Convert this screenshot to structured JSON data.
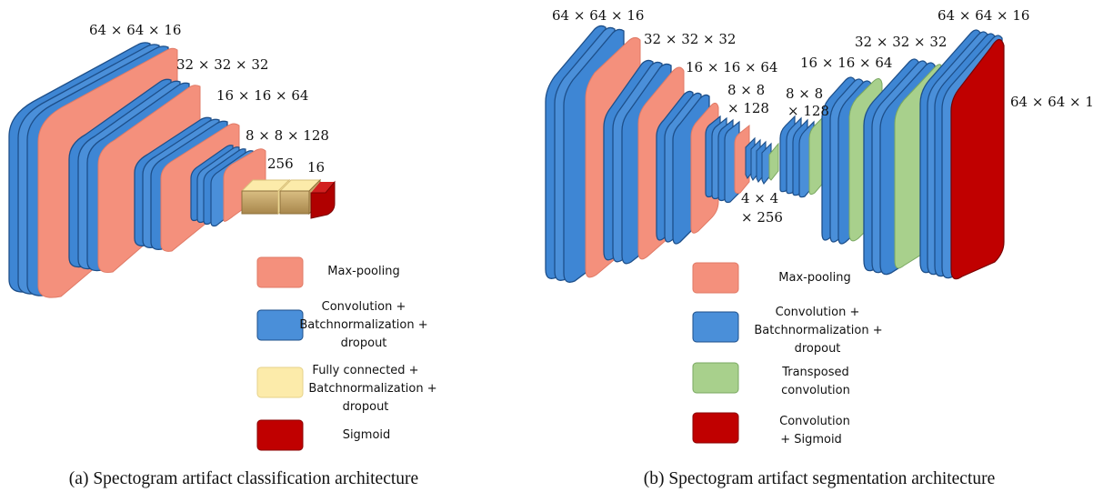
{
  "panel_a": {
    "labels": {
      "l1": "64 × 64 × 16",
      "l2": "32 × 32 × 32",
      "l3": "16 × 16 × 64",
      "l4": "8 × 8 × 128",
      "l5": "256",
      "l6": "16"
    },
    "legend": {
      "maxpool": [
        "Max-pooling"
      ],
      "conv": [
        "Convolution +",
        "Batchnormalization +",
        "dropout"
      ],
      "fc": [
        "Fully connected +",
        "Batchnormalization +",
        "dropout"
      ],
      "sigmoid": [
        "Sigmoid"
      ]
    },
    "caption": "(a) Spectogram artifact classification architecture"
  },
  "panel_b": {
    "labels": {
      "l1": "64 × 64 × 16",
      "l2": "32 × 32 × 32",
      "l3": "16 × 16 × 64",
      "l4a": "8 × 8",
      "l4b": "× 128",
      "l5a": "4 × 4",
      "l5b": "× 256",
      "l6a": "8 × 8",
      "l6b": "× 128",
      "l7": "16 × 16 × 64",
      "l8": "32 × 32 × 32",
      "l9": "64 × 64 × 16",
      "l10": "64 × 64 × 1"
    },
    "legend": {
      "maxpool": [
        "Max-pooling"
      ],
      "conv": [
        "Convolution +",
        "Batchnormalization +",
        "dropout"
      ],
      "tconv": [
        "Transposed",
        "convolution"
      ],
      "convsig": [
        "Convolution",
        "+ Sigmoid"
      ]
    },
    "caption": "(b) Spectogram artifact segmentation architecture"
  },
  "colors": {
    "maxpool": "#f4907c",
    "conv": "#3e86d4",
    "fc": "#fcebaa",
    "sigmoid": "#c00000",
    "tconv": "#a8d08c",
    "block_gold": "#c9a86a"
  }
}
